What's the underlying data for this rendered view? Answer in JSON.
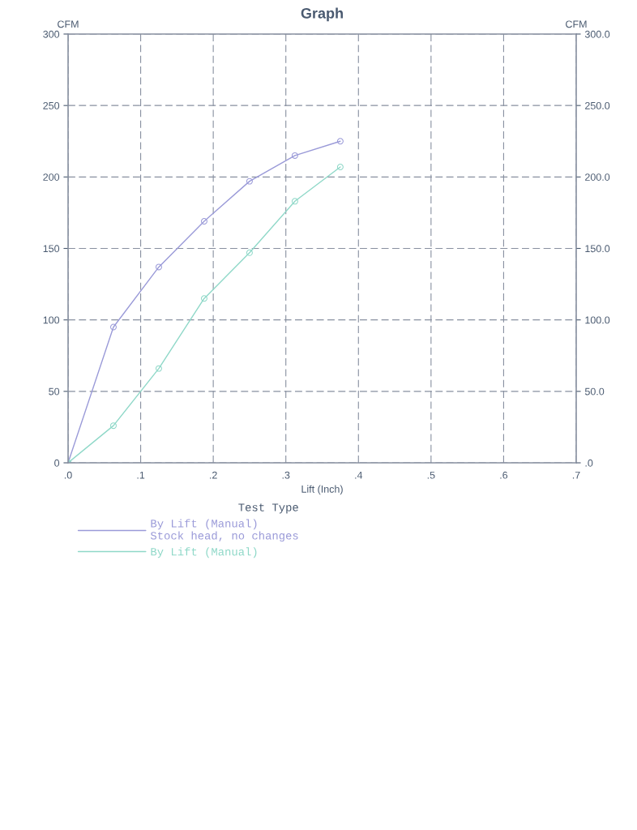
{
  "chart_data": {
    "type": "line",
    "title": "Graph",
    "xlabel": "Lift (Inch)",
    "ylabel": "CFM",
    "y2label": "CFM",
    "legend_title": "Test Type",
    "xlim": [
      0,
      0.7
    ],
    "xticks": [
      {
        "value": 0,
        "label": ".0"
      },
      {
        "value": 0.1,
        "label": ".1"
      },
      {
        "value": 0.2,
        "label": ".2"
      },
      {
        "value": 0.3,
        "label": ".3"
      },
      {
        "value": 0.4,
        "label": ".4"
      },
      {
        "value": 0.5,
        "label": ".5"
      },
      {
        "value": 0.6,
        "label": ".6"
      },
      {
        "value": 0.7,
        "label": ".7"
      }
    ],
    "ylim": [
      0,
      300
    ],
    "yticks": [
      0,
      50,
      100,
      150,
      200,
      250,
      300
    ],
    "y2lim": [
      0,
      300
    ],
    "y2ticks": [
      {
        "value": 0,
        "label": ".0"
      },
      {
        "value": 50,
        "label": "50.0"
      },
      {
        "value": 100,
        "label": "100.0"
      },
      {
        "value": 150,
        "label": "150.0"
      },
      {
        "value": 200,
        "label": "200.0"
      },
      {
        "value": 250,
        "label": "250.0"
      },
      {
        "value": 300,
        "label": "300.0"
      }
    ],
    "grid": true,
    "line_style": "solid",
    "marker": "circle",
    "legend": "bottom",
    "series": [
      {
        "name": "By Lift (Manual)\nStock head, no changes",
        "color": "#9a9ad8",
        "x": [
          0,
          0.0625,
          0.125,
          0.1875,
          0.25,
          0.3125,
          0.375
        ],
        "values": [
          0,
          95,
          137,
          169,
          197,
          215,
          225
        ]
      },
      {
        "name": "By Lift (Manual)",
        "color": "#8fd8c8",
        "x": [
          0,
          0.0625,
          0.125,
          0.1875,
          0.25,
          0.3125,
          0.375
        ],
        "values": [
          0,
          26,
          66,
          115,
          147,
          183,
          207
        ]
      }
    ]
  }
}
